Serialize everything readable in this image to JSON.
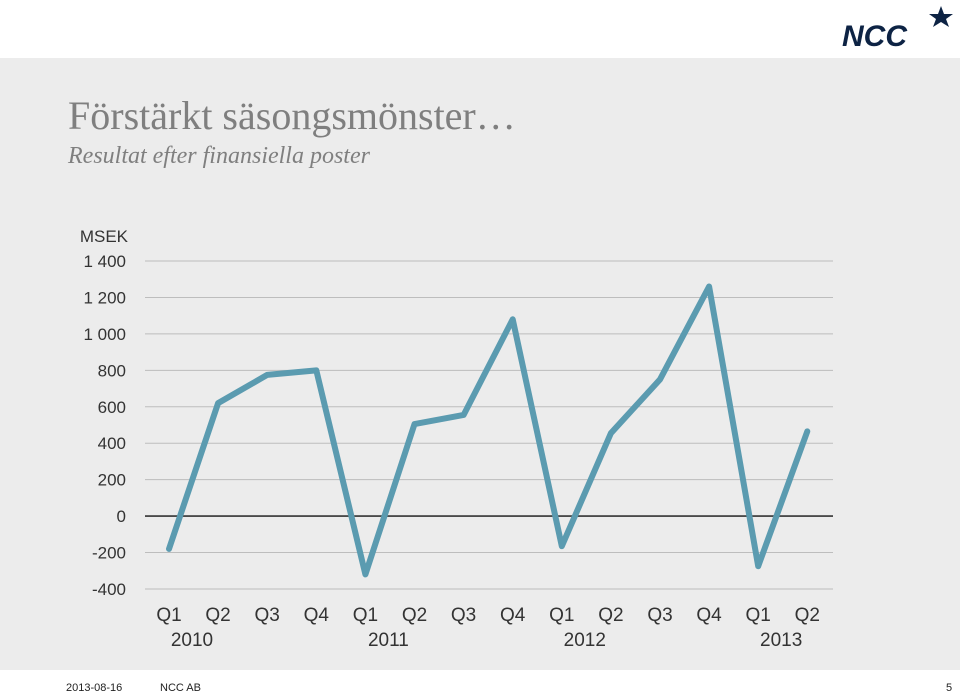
{
  "brand": {
    "logo_text": "NCC",
    "logo_color": "#0d2344"
  },
  "slide": {
    "title": "Förstärkt säsongsmönster…",
    "subtitle": "Resultat efter finansiella poster"
  },
  "footer": {
    "date": "2013-08-16",
    "company": "NCC AB",
    "page": "5"
  },
  "chart_data": {
    "type": "line",
    "ylabel": "MSEK",
    "ylim": [
      -400,
      1400
    ],
    "yticks": [
      {
        "value": 1400,
        "label": "1 400"
      },
      {
        "value": 1200,
        "label": "1 200"
      },
      {
        "value": 1000,
        "label": "1 000"
      },
      {
        "value": 800,
        "label": "800"
      },
      {
        "value": 600,
        "label": "600"
      },
      {
        "value": 400,
        "label": "400"
      },
      {
        "value": 200,
        "label": "200"
      },
      {
        "value": 0,
        "label": "0"
      },
      {
        "value": -200,
        "label": "-200"
      },
      {
        "value": -400,
        "label": "-400"
      }
    ],
    "categories": [
      "Q1",
      "Q2",
      "Q3",
      "Q4",
      "Q1",
      "Q2",
      "Q3",
      "Q4",
      "Q1",
      "Q2",
      "Q3",
      "Q4",
      "Q1",
      "Q2"
    ],
    "year_labels": [
      {
        "label": "2010",
        "index": 0
      },
      {
        "label": "2011",
        "index": 4
      },
      {
        "label": "2012",
        "index": 8
      },
      {
        "label": "2013",
        "index": 12
      }
    ],
    "series": [
      {
        "color": "#5b9bb0",
        "values": [
          -180,
          620,
          775,
          800,
          -320,
          505,
          555,
          1080,
          -165,
          455,
          750,
          1260,
          -275,
          465
        ]
      }
    ],
    "grid": true,
    "gridline_color": "#bdbdbd",
    "zero_line_color": "#333333"
  }
}
